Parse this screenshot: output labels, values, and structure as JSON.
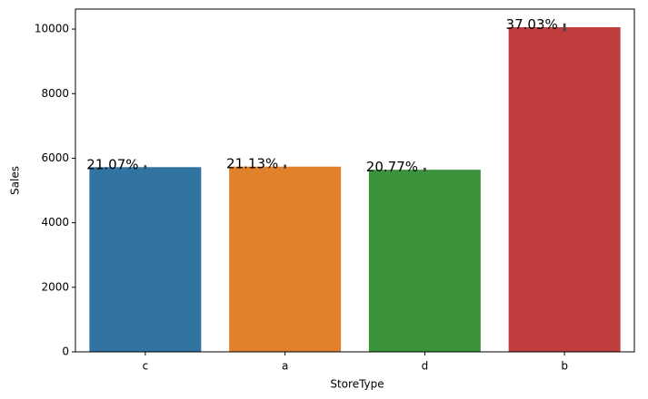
{
  "chart_data": {
    "type": "bar",
    "x_label": "StoreType",
    "y_label": "Sales",
    "categories": [
      "c",
      "a",
      "d",
      "b"
    ],
    "values": [
      5723,
      5739,
      5642,
      10058
    ],
    "errors": [
      60,
      60,
      60,
      120
    ],
    "colors": [
      "#3274a1",
      "#e1812c",
      "#3a923a",
      "#c03d3e"
    ],
    "annotations": [
      "21.07%",
      "21.13%",
      "20.77%",
      "37.03%"
    ],
    "ylim": [
      0,
      10620
    ],
    "yticks": [
      0,
      2000,
      4000,
      6000,
      8000,
      10000
    ],
    "grid": false
  }
}
